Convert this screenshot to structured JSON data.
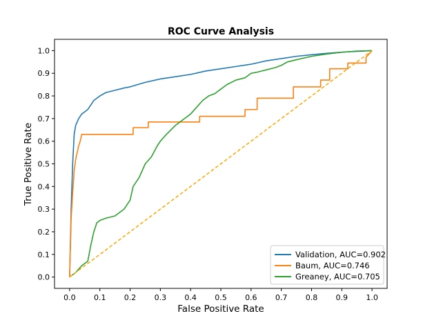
{
  "chart_data": {
    "type": "line",
    "title": "ROC Curve Analysis",
    "xlabel": "False Positive Rate",
    "ylabel": "True Positive Rate",
    "xlim": [
      -0.05,
      1.05
    ],
    "ylim": [
      -0.05,
      1.05
    ],
    "xticks": [
      "0.0",
      "0.1",
      "0.2",
      "0.3",
      "0.4",
      "0.5",
      "0.6",
      "0.7",
      "0.8",
      "0.9",
      "1.0"
    ],
    "yticks": [
      "0.0",
      "0.1",
      "0.2",
      "0.3",
      "0.4",
      "0.5",
      "0.6",
      "0.7",
      "0.8",
      "0.9",
      "1.0"
    ],
    "grid": false,
    "legend_position": "lower-right",
    "series": [
      {
        "name": "Validation, AUC=0.902",
        "color": "#1f77b4",
        "x": [
          0,
          0.005,
          0.01,
          0.015,
          0.02,
          0.03,
          0.04,
          0.05,
          0.06,
          0.07,
          0.08,
          0.09,
          0.1,
          0.12,
          0.15,
          0.18,
          0.2,
          0.25,
          0.3,
          0.35,
          0.4,
          0.45,
          0.5,
          0.55,
          0.6,
          0.65,
          0.7,
          0.75,
          0.8,
          0.85,
          0.9,
          0.95,
          1.0
        ],
        "y": [
          0,
          0.3,
          0.5,
          0.63,
          0.67,
          0.7,
          0.72,
          0.73,
          0.74,
          0.76,
          0.78,
          0.79,
          0.8,
          0.815,
          0.825,
          0.835,
          0.84,
          0.86,
          0.875,
          0.885,
          0.895,
          0.91,
          0.92,
          0.93,
          0.94,
          0.955,
          0.965,
          0.975,
          0.982,
          0.988,
          0.993,
          0.997,
          1.0
        ]
      },
      {
        "name": "Baum, AUC=0.746",
        "color": "#ff7f0e",
        "x": [
          0,
          0.005,
          0.01,
          0.015,
          0.02,
          0.025,
          0.03,
          0.035,
          0.04,
          0.21,
          0.21,
          0.26,
          0.26,
          0.37,
          0.37,
          0.43,
          0.43,
          0.58,
          0.58,
          0.62,
          0.62,
          0.74,
          0.74,
          0.83,
          0.83,
          0.86,
          0.86,
          0.92,
          0.92,
          0.98,
          0.98,
          1.0
        ],
        "y": [
          0,
          0.26,
          0.37,
          0.47,
          0.52,
          0.55,
          0.58,
          0.6,
          0.63,
          0.63,
          0.66,
          0.66,
          0.685,
          0.685,
          0.685,
          0.685,
          0.71,
          0.71,
          0.74,
          0.74,
          0.79,
          0.79,
          0.84,
          0.84,
          0.87,
          0.87,
          0.92,
          0.92,
          0.945,
          0.945,
          0.97,
          1.0
        ]
      },
      {
        "name": "Greaney, AUC=0.705",
        "color": "#2ca02c",
        "x": [
          0,
          0.02,
          0.04,
          0.06,
          0.07,
          0.08,
          0.09,
          0.1,
          0.12,
          0.15,
          0.18,
          0.2,
          0.21,
          0.23,
          0.25,
          0.27,
          0.29,
          0.3,
          0.32,
          0.35,
          0.38,
          0.4,
          0.42,
          0.44,
          0.46,
          0.48,
          0.5,
          0.52,
          0.55,
          0.58,
          0.6,
          0.62,
          0.65,
          0.68,
          0.7,
          0.72,
          0.75,
          0.8,
          0.85,
          0.9,
          0.95,
          1.0
        ],
        "y": [
          0,
          0.02,
          0.05,
          0.07,
          0.14,
          0.2,
          0.24,
          0.25,
          0.26,
          0.27,
          0.3,
          0.34,
          0.4,
          0.44,
          0.5,
          0.53,
          0.58,
          0.6,
          0.63,
          0.67,
          0.7,
          0.72,
          0.75,
          0.78,
          0.8,
          0.81,
          0.83,
          0.85,
          0.87,
          0.88,
          0.9,
          0.905,
          0.915,
          0.925,
          0.935,
          0.95,
          0.96,
          0.975,
          0.985,
          0.993,
          0.998,
          1.0
        ]
      },
      {
        "name": "",
        "color": "#ffa500",
        "style": "dashed",
        "x": [
          0,
          1
        ],
        "y": [
          0,
          1
        ]
      }
    ]
  }
}
